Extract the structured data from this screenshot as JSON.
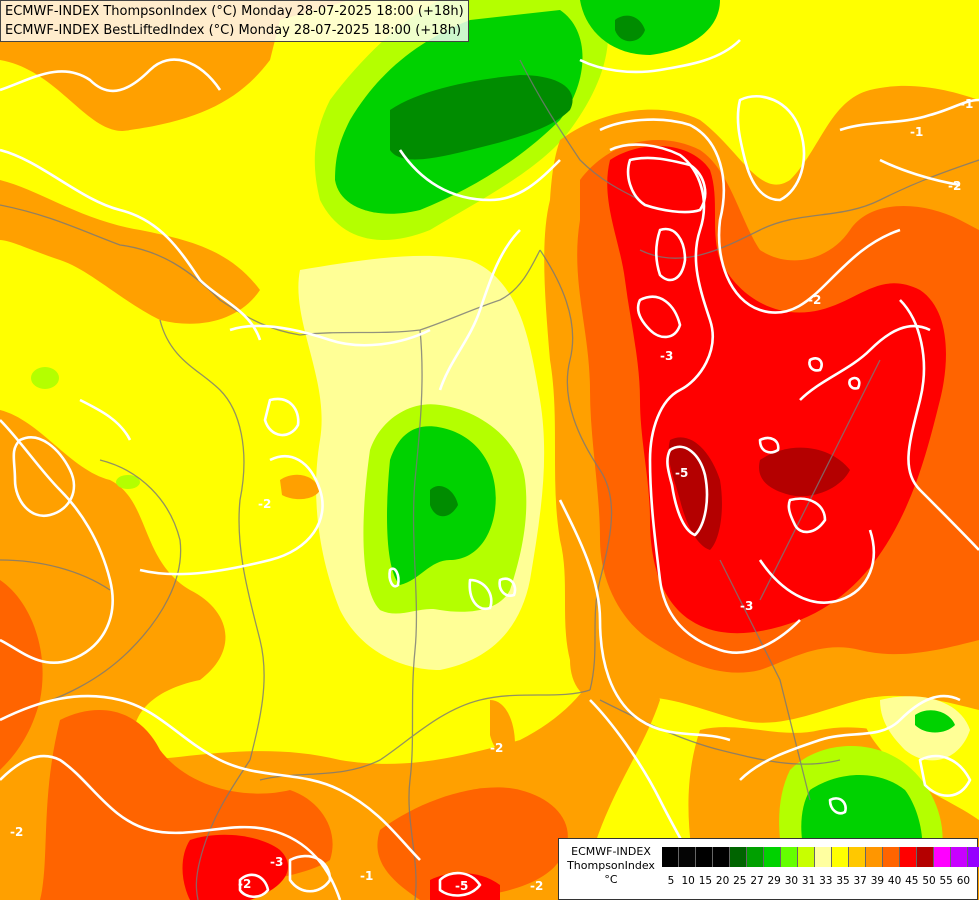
{
  "titles": {
    "line1": "ECMWF-INDEX ThompsonIndex (°C) Monday 28-07-2025 18:00 (+18h)",
    "line2": "ECMWF-INDEX BestLiftedIndex (°C) Monday 28-07-2025 18:00 (+18h)"
  },
  "legend": {
    "title": [
      "ECMWF-INDEX",
      "ThompsonIndex",
      "°C"
    ],
    "colors": [
      "#000000",
      "#050505",
      "#000000",
      "#000000",
      "#006400",
      "#00a000",
      "#00d200",
      "#64ff00",
      "#c8ff00",
      "#ffffa0",
      "#ffff00",
      "#ffc800",
      "#ff9600",
      "#ff6400",
      "#ff0000",
      "#b40000",
      "#ff00ff",
      "#c800ff",
      "#9600ff",
      "#6400ff",
      "#0000ff"
    ],
    "ticks": [
      "5",
      "10",
      "15",
      "20",
      "25",
      "27",
      "29",
      "30",
      "31",
      "33",
      "35",
      "37",
      "39",
      "40",
      "45",
      "50",
      "55",
      "60"
    ]
  },
  "contour_labels": [
    "-2",
    "-2",
    "-2",
    "-3",
    "-2",
    "-5",
    "-1",
    "-2",
    "-3",
    "-2",
    "-1",
    "-1",
    "-1",
    "-3",
    "-5",
    "-2"
  ],
  "colors": {
    "yellow": "#ffff00",
    "light_yellow": "#ffff96",
    "orange": "#ffa000",
    "dark_orange": "#ff6400",
    "red": "#ff0000",
    "dark_red": "#b40000",
    "lime": "#b4ff00",
    "green": "#00d200",
    "dark_green": "#008c00",
    "contour": "#ffffff",
    "border": "#787878"
  }
}
